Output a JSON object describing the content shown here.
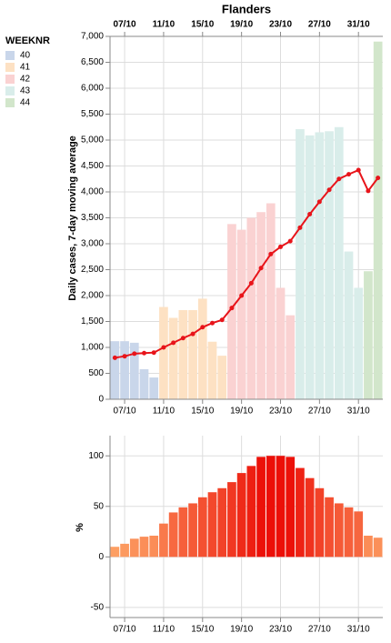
{
  "chart_data": [
    {
      "type": "bar",
      "title": "Flanders",
      "y_label": "Daily cases, 7-day moving average",
      "categories": [
        null,
        "07/10",
        null,
        null,
        null,
        "11/10",
        null,
        null,
        null,
        "15/10",
        null,
        null,
        null,
        "19/10",
        null,
        null,
        null,
        "23/10",
        null,
        null,
        null,
        "27/10",
        null,
        null,
        null,
        "31/10",
        null,
        null
      ],
      "legend_title": "WEEKNR",
      "series": [
        {
          "name": "40",
          "color": "#c9d6ea",
          "values": [
            1120,
            1120,
            1090,
            580,
            420,
            null,
            null,
            null,
            null,
            null,
            null,
            null,
            null,
            null,
            null,
            null,
            null,
            null,
            null,
            null,
            null,
            null,
            null,
            null,
            null,
            null,
            null,
            null
          ]
        },
        {
          "name": "41",
          "color": "#fde1c3",
          "values": [
            null,
            null,
            null,
            null,
            null,
            1780,
            1570,
            1720,
            1720,
            1940,
            1110,
            840,
            null,
            null,
            null,
            null,
            null,
            null,
            null,
            null,
            null,
            null,
            null,
            null,
            null,
            null,
            null,
            null
          ]
        },
        {
          "name": "42",
          "color": "#fad2d2",
          "values": [
            null,
            null,
            null,
            null,
            null,
            null,
            null,
            null,
            null,
            null,
            null,
            null,
            3380,
            3270,
            3500,
            3610,
            3780,
            2150,
            1620,
            null,
            null,
            null,
            null,
            null,
            null,
            null,
            null,
            null
          ]
        },
        {
          "name": "43",
          "color": "#d9edea",
          "values": [
            null,
            null,
            null,
            null,
            null,
            null,
            null,
            null,
            null,
            null,
            null,
            null,
            null,
            null,
            null,
            null,
            null,
            null,
            null,
            5210,
            5090,
            5150,
            5170,
            5250,
            2850,
            2150,
            null,
            null
          ]
        },
        {
          "name": "44",
          "color": "#d2e6cb",
          "values": [
            null,
            null,
            null,
            null,
            null,
            null,
            null,
            null,
            null,
            null,
            null,
            null,
            null,
            null,
            null,
            null,
            null,
            null,
            null,
            null,
            null,
            null,
            null,
            null,
            null,
            null,
            2470,
            6900
          ]
        }
      ],
      "line": {
        "color": "#e8141a",
        "values": [
          800,
          830,
          880,
          890,
          900,
          1000,
          1090,
          1180,
          1260,
          1390,
          1470,
          1530,
          1760,
          2000,
          2240,
          2530,
          2800,
          2940,
          3050,
          3310,
          3570,
          3810,
          4040,
          4250,
          4340,
          4420,
          4020,
          4270
        ]
      },
      "ylim": [
        0,
        7000
      ],
      "yticks": [
        0,
        500,
        {
          "value": 1000,
          "label": "1,000"
        },
        {
          "value": 1500,
          "label": "1,500"
        },
        {
          "value": 2000,
          "label": "2,000"
        },
        {
          "value": 2500,
          "label": "2,500"
        },
        {
          "value": 3000,
          "label": "3,000"
        },
        {
          "value": 3500,
          "label": "3,500"
        },
        {
          "value": 4000,
          "label": "4,000"
        },
        {
          "value": 4500,
          "label": "4,500"
        },
        {
          "value": 5000,
          "label": "5,000"
        },
        {
          "value": 5500,
          "label": "5,500"
        },
        {
          "value": 6000,
          "label": "6,000"
        },
        {
          "value": 6500,
          "label": "6,500"
        },
        {
          "value": 7000,
          "label": "7,000"
        }
      ],
      "grid": true
    },
    {
      "type": "bar",
      "y_label": "%",
      "categories": [
        null,
        "07/10",
        null,
        null,
        null,
        "11/10",
        null,
        null,
        null,
        "15/10",
        null,
        null,
        null,
        "19/10",
        null,
        null,
        null,
        "23/10",
        null,
        null,
        null,
        "27/10",
        null,
        null,
        null,
        "31/10",
        null,
        null
      ],
      "values": [
        10,
        13,
        18,
        20,
        21,
        33,
        44,
        49,
        53,
        59,
        64,
        68,
        74,
        83,
        90,
        99,
        100,
        100,
        99,
        88,
        78,
        68,
        59,
        53,
        49,
        45,
        21,
        19
      ],
      "colors": [
        "#fd9e62",
        "#ec0f08"
      ],
      "ylim": [
        -60,
        120
      ],
      "yticks": [
        -50,
        0,
        50,
        100
      ],
      "grid": true
    }
  ]
}
